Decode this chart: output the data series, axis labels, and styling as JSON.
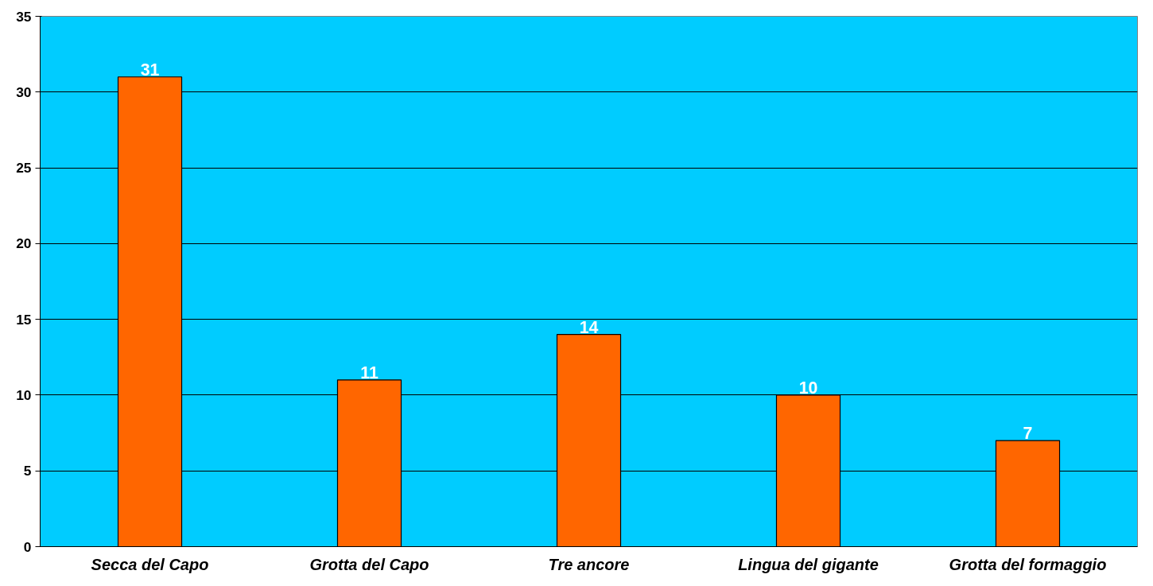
{
  "chart_data": {
    "type": "bar",
    "categories": [
      "Secca del Capo",
      "Grotta del Capo",
      "Tre ancore",
      "Lingua del gigante",
      "Grotta del formaggio"
    ],
    "values": [
      31,
      11,
      14,
      10,
      7
    ],
    "color": "#ff6600",
    "data_labels": true,
    "ylim": [
      0,
      35
    ],
    "yticks": [
      0,
      5,
      10,
      15,
      20,
      25,
      30,
      35
    ],
    "grid": "y"
  }
}
